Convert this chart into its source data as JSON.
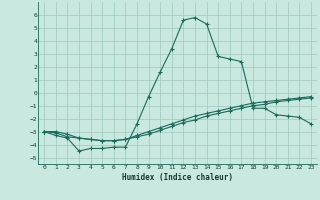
{
  "xlabel": "Humidex (Indice chaleur)",
  "background_color": "#c8e8e0",
  "grid_color": "#a0c8c0",
  "line_color": "#1a6b5a",
  "xlim": [
    -0.5,
    23.5
  ],
  "ylim": [
    -5.5,
    7.0
  ],
  "xticks": [
    0,
    1,
    2,
    3,
    4,
    5,
    6,
    7,
    8,
    9,
    10,
    11,
    12,
    13,
    14,
    15,
    16,
    17,
    18,
    19,
    20,
    21,
    22,
    23
  ],
  "yticks": [
    -5,
    -4,
    -3,
    -2,
    -1,
    0,
    1,
    2,
    3,
    4,
    5,
    6
  ],
  "series": [
    {
      "x": [
        0,
        1,
        2,
        3,
        4,
        5,
        6,
        7,
        8,
        9,
        10,
        11,
        12,
        13,
        14,
        15,
        16,
        17,
        18,
        19,
        20,
        21,
        22,
        23
      ],
      "y": [
        -3.0,
        -3.3,
        -3.5,
        -4.5,
        -4.3,
        -4.3,
        -4.2,
        -4.2,
        -2.4,
        -0.3,
        1.6,
        3.4,
        5.6,
        5.8,
        5.3,
        2.8,
        2.6,
        2.4,
        -1.2,
        -1.2,
        -1.7,
        -1.8,
        -1.9,
        -2.4
      ]
    },
    {
      "x": [
        0,
        1,
        2,
        3,
        4,
        5,
        6,
        7,
        8,
        9,
        10,
        11,
        12,
        13,
        14,
        15,
        16,
        17,
        18,
        19,
        20,
        21,
        22,
        23
      ],
      "y": [
        -3.0,
        -3.1,
        -3.4,
        -3.5,
        -3.6,
        -3.7,
        -3.7,
        -3.6,
        -3.4,
        -3.2,
        -2.9,
        -2.6,
        -2.3,
        -2.1,
        -1.8,
        -1.6,
        -1.4,
        -1.2,
        -1.0,
        -0.9,
        -0.7,
        -0.6,
        -0.5,
        -0.4
      ]
    },
    {
      "x": [
        0,
        1,
        2,
        3,
        4,
        5,
        6,
        7,
        8,
        9,
        10,
        11,
        12,
        13,
        14,
        15,
        16,
        17,
        18,
        19,
        20,
        21,
        22,
        23
      ],
      "y": [
        -3.0,
        -3.0,
        -3.2,
        -3.5,
        -3.6,
        -3.7,
        -3.7,
        -3.6,
        -3.3,
        -3.0,
        -2.7,
        -2.4,
        -2.1,
        -1.8,
        -1.6,
        -1.4,
        -1.2,
        -1.0,
        -0.8,
        -0.7,
        -0.6,
        -0.5,
        -0.4,
        -0.3
      ]
    }
  ]
}
